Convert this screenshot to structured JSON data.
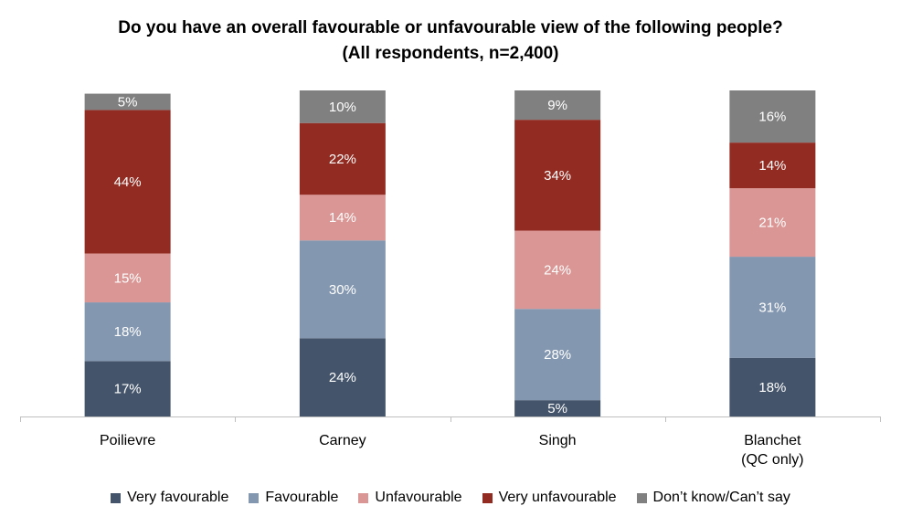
{
  "chart_data": {
    "type": "bar",
    "stacked": true,
    "percent": true,
    "title": "Do you have an overall favourable or unfavourable view of the following people?",
    "subtitle": "(All respondents, n=2,400)",
    "categories": [
      [
        "Poilievre"
      ],
      [
        "Carney"
      ],
      [
        "Singh"
      ],
      [
        "Blanchet",
        "(QC only)"
      ]
    ],
    "series": [
      {
        "name": "Very favourable",
        "color": "#44546a",
        "values": [
          17,
          24,
          5,
          18
        ]
      },
      {
        "name": "Favourable",
        "color": "#8497b0",
        "values": [
          18,
          30,
          28,
          31
        ]
      },
      {
        "name": "Unfavourable",
        "color": "#da9694",
        "values": [
          15,
          14,
          24,
          21
        ]
      },
      {
        "name": "Very unfavourable",
        "color": "#922b21",
        "values": [
          44,
          22,
          34,
          14
        ]
      },
      {
        "name": "Don’t know/Can’t say",
        "color": "#808080",
        "values": [
          5,
          10,
          9,
          16
        ]
      }
    ],
    "ylim": [
      0,
      100
    ],
    "grid": false,
    "legend_position": "bottom"
  }
}
